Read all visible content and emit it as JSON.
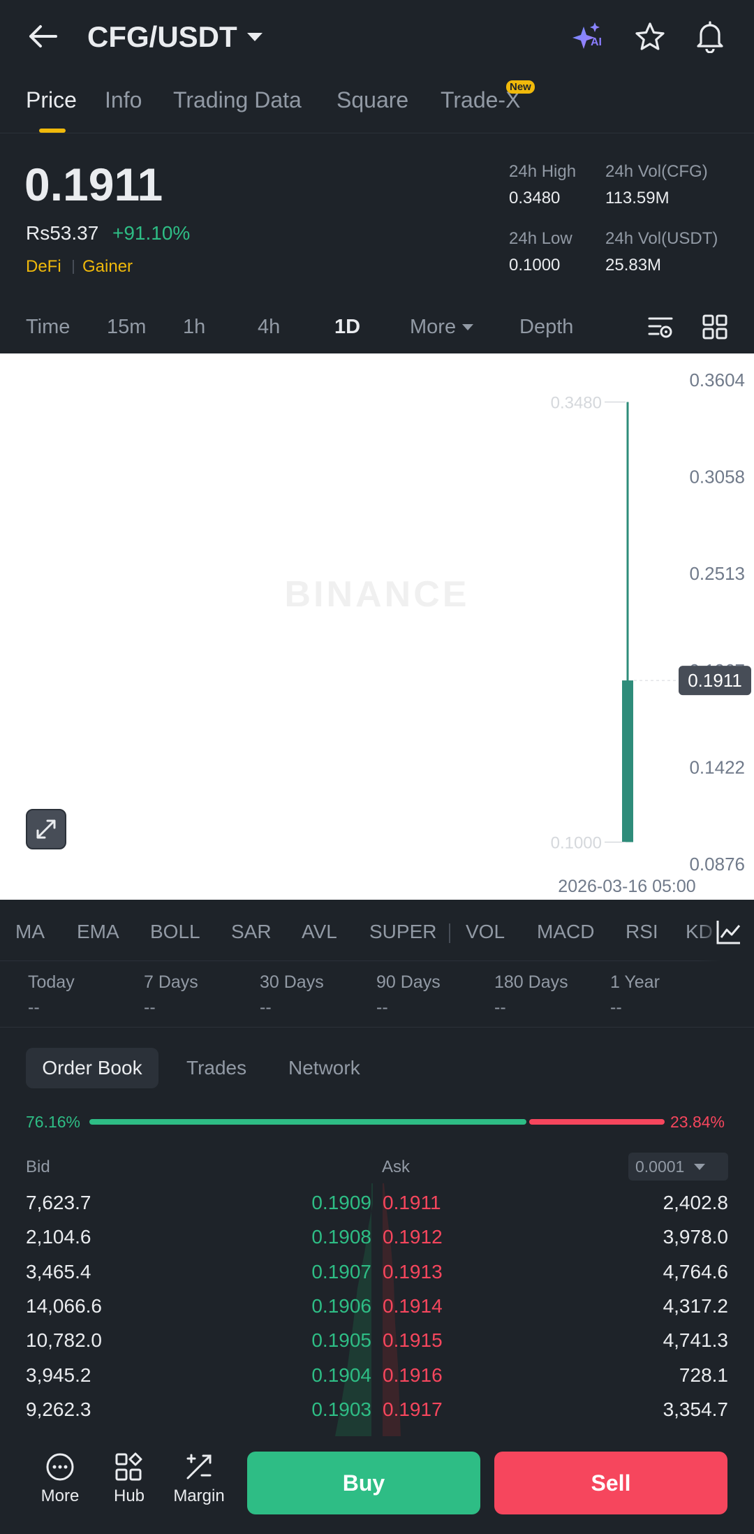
{
  "header": {
    "pair": "CFG/USDT",
    "ai_badge": "AI"
  },
  "tabs": [
    {
      "label": "Price",
      "active": true
    },
    {
      "label": "Info"
    },
    {
      "label": "Trading Data"
    },
    {
      "label": "Square"
    },
    {
      "label": "Trade-X",
      "badge": "New"
    }
  ],
  "price": {
    "last": "0.1911",
    "fiat": "Rs53.37",
    "change": "+91.10%",
    "tags": [
      "DeFi",
      "Gainer"
    ],
    "high_label": "24h High",
    "high": "0.3480",
    "vol_base_label": "24h Vol(CFG)",
    "vol_base": "113.59M",
    "low_label": "24h Low",
    "low": "0.1000",
    "vol_quote_label": "24h Vol(USDT)",
    "vol_quote": "25.83M"
  },
  "timeframes": [
    "Time",
    "15m",
    "1h",
    "4h",
    "1D",
    "More",
    "Depth"
  ],
  "active_timeframe": "1D",
  "chart_data": {
    "type": "candlestick",
    "y_ticks": [
      "0.3604",
      "0.3058",
      "0.2513",
      "0.1967",
      "0.1422",
      "0.0876"
    ],
    "ylim": [
      0.0876,
      0.3604
    ],
    "current_price": "0.1911",
    "high_label": "0.3480",
    "low_label": "0.1000",
    "date_label": "2026-03-16 05:00",
    "candles": [
      {
        "date": "2026-03-16 05:00",
        "open": 0.1,
        "high": 0.348,
        "low": 0.1,
        "close": 0.1911
      }
    ],
    "watermark": "BINANCE",
    "colors": {
      "up": "#2e8c7a"
    }
  },
  "indicators": [
    "MA",
    "EMA",
    "BOLL",
    "SAR",
    "AVL",
    "SUPER",
    "VOL",
    "MACD",
    "RSI",
    "KD"
  ],
  "performance": [
    {
      "label": "Today",
      "value": "--"
    },
    {
      "label": "7 Days",
      "value": "--"
    },
    {
      "label": "30 Days",
      "value": "--"
    },
    {
      "label": "90 Days",
      "value": "--"
    },
    {
      "label": "180 Days",
      "value": "--"
    },
    {
      "label": "1 Year",
      "value": "--"
    }
  ],
  "orderbook_tabs": [
    "Order Book",
    "Trades",
    "Network"
  ],
  "ratio": {
    "bid": "76.16%",
    "ask": "23.84%",
    "bid_fraction": 0.7616
  },
  "orderbook": {
    "bid_label": "Bid",
    "ask_label": "Ask",
    "precision": "0.0001",
    "rows": [
      {
        "bid_qty": "7,623.7",
        "bid_price": "0.1909",
        "ask_price": "0.1911",
        "ask_qty": "2,402.8"
      },
      {
        "bid_qty": "2,104.6",
        "bid_price": "0.1908",
        "ask_price": "0.1912",
        "ask_qty": "3,978.0"
      },
      {
        "bid_qty": "3,465.4",
        "bid_price": "0.1907",
        "ask_price": "0.1913",
        "ask_qty": "4,764.6"
      },
      {
        "bid_qty": "14,066.6",
        "bid_price": "0.1906",
        "ask_price": "0.1914",
        "ask_qty": "4,317.2"
      },
      {
        "bid_qty": "10,782.0",
        "bid_price": "0.1905",
        "ask_price": "0.1915",
        "ask_qty": "4,741.3"
      },
      {
        "bid_qty": "3,945.2",
        "bid_price": "0.1904",
        "ask_price": "0.1916",
        "ask_qty": "728.1"
      },
      {
        "bid_qty": "9,262.3",
        "bid_price": "0.1903",
        "ask_price": "0.1917",
        "ask_qty": "3,354.7"
      }
    ]
  },
  "bottom": {
    "more": "More",
    "hub": "Hub",
    "margin": "Margin",
    "buy": "Buy",
    "sell": "Sell"
  },
  "colors": {
    "buy": "#2ebd85",
    "sell": "#f6465d",
    "accent": "#f0b90b",
    "bg": "#1e2329"
  }
}
